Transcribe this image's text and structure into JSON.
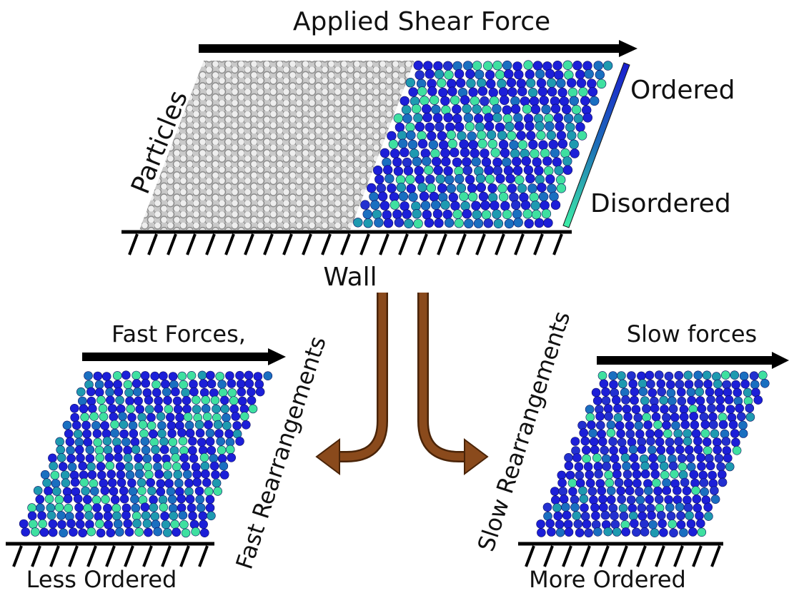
{
  "title": "Applied Shear Force",
  "labels": {
    "particles": "Particles",
    "ordered": "Ordered",
    "disordered": "Disordered",
    "wall": "Wall"
  },
  "left": {
    "force": "Fast Forces,",
    "process": "Fast Rearrangements",
    "result": "Less Ordered"
  },
  "right": {
    "force": "Slow forces",
    "process": "Slow Rearrangements",
    "result": "More Ordered"
  }
}
